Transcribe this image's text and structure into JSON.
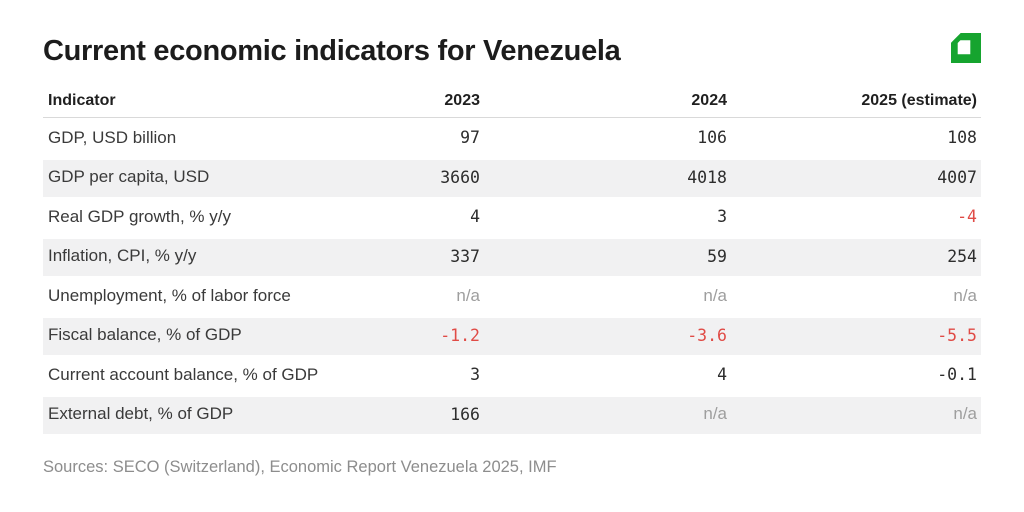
{
  "title": "Current economic indicators for Venezuela",
  "logo": {
    "icon": "green-cube-logo"
  },
  "table": {
    "columns": [
      "Indicator",
      "2023",
      "2024",
      "2025 (estimate)"
    ],
    "rows": [
      {
        "indicator": "GDP, USD billion",
        "values": [
          "97",
          "106",
          "108"
        ],
        "styles": [
          "normal",
          "normal",
          "normal"
        ]
      },
      {
        "indicator": "GDP per capita, USD",
        "values": [
          "3660",
          "4018",
          "4007"
        ],
        "styles": [
          "normal",
          "normal",
          "normal"
        ]
      },
      {
        "indicator": "Real GDP growth, % y/y",
        "values": [
          "4",
          "3",
          "-4"
        ],
        "styles": [
          "normal",
          "normal",
          "negative"
        ]
      },
      {
        "indicator": "Inflation, CPI, % y/y",
        "values": [
          "337",
          "59",
          "254"
        ],
        "styles": [
          "normal",
          "normal",
          "normal"
        ]
      },
      {
        "indicator": "Unemployment, % of labor force",
        "values": [
          "n/a",
          "n/a",
          "n/a"
        ],
        "styles": [
          "na",
          "na",
          "na"
        ]
      },
      {
        "indicator": "Fiscal balance, % of GDP",
        "values": [
          "-1.2",
          "-3.6",
          "-5.5"
        ],
        "styles": [
          "negative",
          "negative",
          "negative"
        ]
      },
      {
        "indicator": "Current account balance, % of GDP",
        "values": [
          "3",
          "4",
          "-0.1"
        ],
        "styles": [
          "normal",
          "normal",
          "normal"
        ]
      },
      {
        "indicator": "External debt, % of GDP",
        "values": [
          "166",
          "n/a",
          "n/a"
        ],
        "styles": [
          "normal",
          "na",
          "na"
        ]
      }
    ]
  },
  "source": "Sources: SECO (Switzerland), Economic Report Venezuela 2025, IMF",
  "colors": {
    "negative": "#e04b46",
    "na": "#9e9e9e",
    "stripe": "#f1f1f2",
    "accent_green": "#16a42f",
    "title_text": "#1c1c1c",
    "source_text": "#8d8d8d"
  },
  "chart_data": {
    "type": "table",
    "title": "Current economic indicators for Venezuela",
    "columns": [
      "Indicator",
      "2023",
      "2024",
      "2025 (estimate)"
    ],
    "rows": [
      [
        "GDP, USD billion",
        97,
        106,
        108
      ],
      [
        "GDP per capita, USD",
        3660,
        4018,
        4007
      ],
      [
        "Real GDP growth, % y/y",
        4,
        3,
        -4
      ],
      [
        "Inflation, CPI, % y/y",
        337,
        59,
        254
      ],
      [
        "Unemployment, % of labor force",
        null,
        null,
        null
      ],
      [
        "Fiscal balance, % of GDP",
        -1.2,
        -3.6,
        -5.5
      ],
      [
        "Current account balance, % of GDP",
        3,
        4,
        -0.1
      ],
      [
        "External debt, % of GDP",
        166,
        null,
        null
      ]
    ],
    "notes": "Negative highlighted values shown in red: Real GDP growth 2025 (-4), Fiscal balance all years (-1.2, -3.6, -5.5). Missing values shown as n/a in gray.",
    "source": "Sources: SECO (Switzerland), Economic Report Venezuela 2025, IMF"
  }
}
